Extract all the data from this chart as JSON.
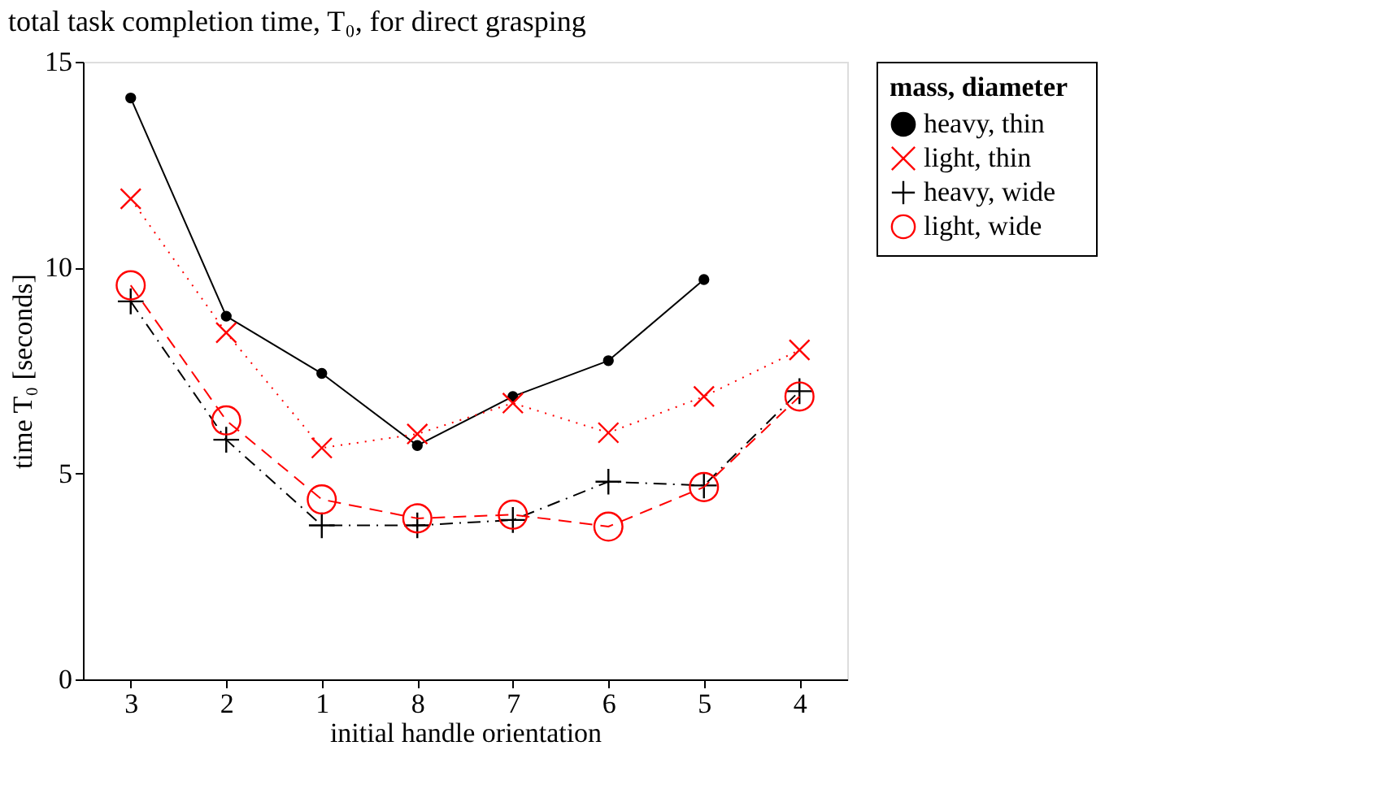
{
  "chart_data": {
    "type": "line",
    "title": "total task completion time, T₀, for direct grasping",
    "xlabel": "initial handle orientation",
    "ylabel": "time T₀  [seconds]",
    "legend_title": "mass,   diameter",
    "categories": [
      "3",
      "2",
      "1",
      "8",
      "7",
      "6",
      "5",
      "4"
    ],
    "ylim": [
      0,
      15
    ],
    "yticks": [
      0,
      5,
      10,
      15
    ],
    "grid": false,
    "legend": "top right",
    "series": [
      {
        "name": "heavy,   thin",
        "color": "#000000",
        "marker": "circle",
        "line_style": "solid",
        "values": [
          14.12,
          8.82,
          7.43,
          5.68,
          6.87,
          7.74,
          9.71,
          null
        ]
      },
      {
        "name": "light,    thin",
        "color": "#ff0000",
        "marker": "x",
        "line_style": "dotted",
        "values": [
          11.67,
          8.42,
          5.62,
          5.96,
          6.71,
          5.99,
          6.87,
          8.0
        ]
      },
      {
        "name": "heavy,   wide",
        "color": "#000000",
        "marker": "plus",
        "line_style": "dashdot",
        "values": [
          9.18,
          5.82,
          3.74,
          3.74,
          3.87,
          4.8,
          4.71,
          7.0
        ]
      },
      {
        "name": "light,     wide",
        "color": "#ff0000",
        "marker": "open circle",
        "line_style": "dashed",
        "values": [
          9.57,
          6.29,
          4.37,
          3.91,
          4.0,
          3.71,
          4.67,
          6.87
        ]
      }
    ]
  }
}
